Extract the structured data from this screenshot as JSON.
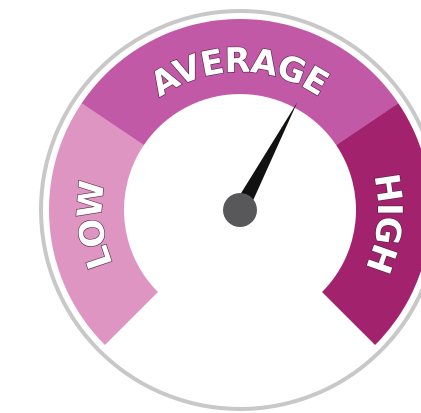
{
  "gauge": {
    "segments": [
      {
        "label": "LOW"
      },
      {
        "label": "AVERAGE"
      },
      {
        "label": "HIGH"
      }
    ]
  }
}
